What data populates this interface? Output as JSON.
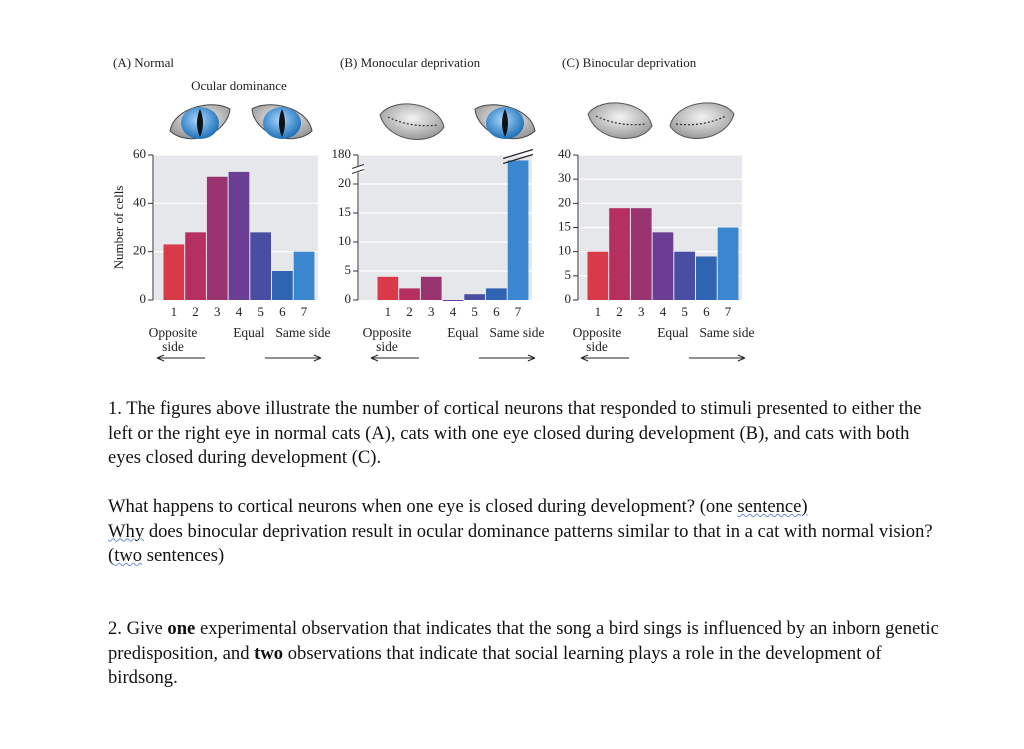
{
  "chart_data": [
    {
      "type": "bar",
      "title": "(A) Normal",
      "subtitle": "Ocular dominance",
      "ylabel": "Number of cells",
      "categories": [
        "1",
        "2",
        "3",
        "4",
        "5",
        "6",
        "7"
      ],
      "values": [
        23,
        28,
        51,
        53,
        28,
        12,
        20
      ],
      "colors": [
        "#d83a4a",
        "#b5305e",
        "#9a3470",
        "#6b3d94",
        "#4a4ea3",
        "#2e64b2",
        "#3a86cf"
      ],
      "ylim": [
        0,
        60
      ],
      "yticks": [
        0,
        20,
        40,
        60
      ],
      "grid": true,
      "x_annotations": [
        "Opposite side",
        "Equal",
        "Same side"
      ]
    },
    {
      "type": "bar",
      "title": "(B) Monocular deprivation",
      "categories": [
        "1",
        "2",
        "3",
        "4",
        "5",
        "6",
        "7"
      ],
      "values": [
        4,
        2,
        4,
        0,
        1,
        2,
        150
      ],
      "colors": [
        "#d83a4a",
        "#b5305e",
        "#9a3470",
        "#6b3d94",
        "#4a4ea3",
        "#2e64b2",
        "#3a86cf"
      ],
      "ylim": [
        0,
        180
      ],
      "yticks": [
        0,
        5,
        10,
        15,
        20,
        180
      ],
      "grid": true,
      "axis_break": true,
      "x_annotations": [
        "Opposite side",
        "Equal",
        "Same side"
      ]
    },
    {
      "type": "bar",
      "title": "(C) Binocular deprivation",
      "categories": [
        "1",
        "2",
        "3",
        "4",
        "5",
        "6",
        "7"
      ],
      "values": [
        10,
        19,
        19,
        14,
        10,
        9,
        15
      ],
      "colors": [
        "#d83a4a",
        "#b5305e",
        "#9a3470",
        "#6b3d94",
        "#4a4ea3",
        "#2e64b2",
        "#3a86cf"
      ],
      "ylim": [
        0,
        40
      ],
      "yticks": [
        0,
        5,
        10,
        15,
        20,
        30,
        40
      ],
      "grid": true,
      "x_annotations": [
        "Opposite side",
        "Equal",
        "Same side"
      ]
    }
  ],
  "document": {
    "question1": {
      "text": "1. The figures above illustrate the number of cortical neurons that responded to stimuli presented to either the left or the right eye in normal cats (A), cats with one eye closed during development (B), and cats with both eyes closed during development (C).",
      "prompt": [
        "What happens to cortical neurons when one eye is closed during development? (one",
        "sentence)",
        "Why",
        "does binocular deprivation result in ocular dominance patterns similar to that in a cat with normal vision? (",
        "two",
        "sentences)"
      ]
    },
    "question2": [
      "2. Give",
      "one",
      "experimental observation that indicates that the song a bird sings is influenced by an inborn genetic predisposition, and",
      "two",
      "observations that indicate that social learning plays a role in the development of birdsong."
    ]
  }
}
